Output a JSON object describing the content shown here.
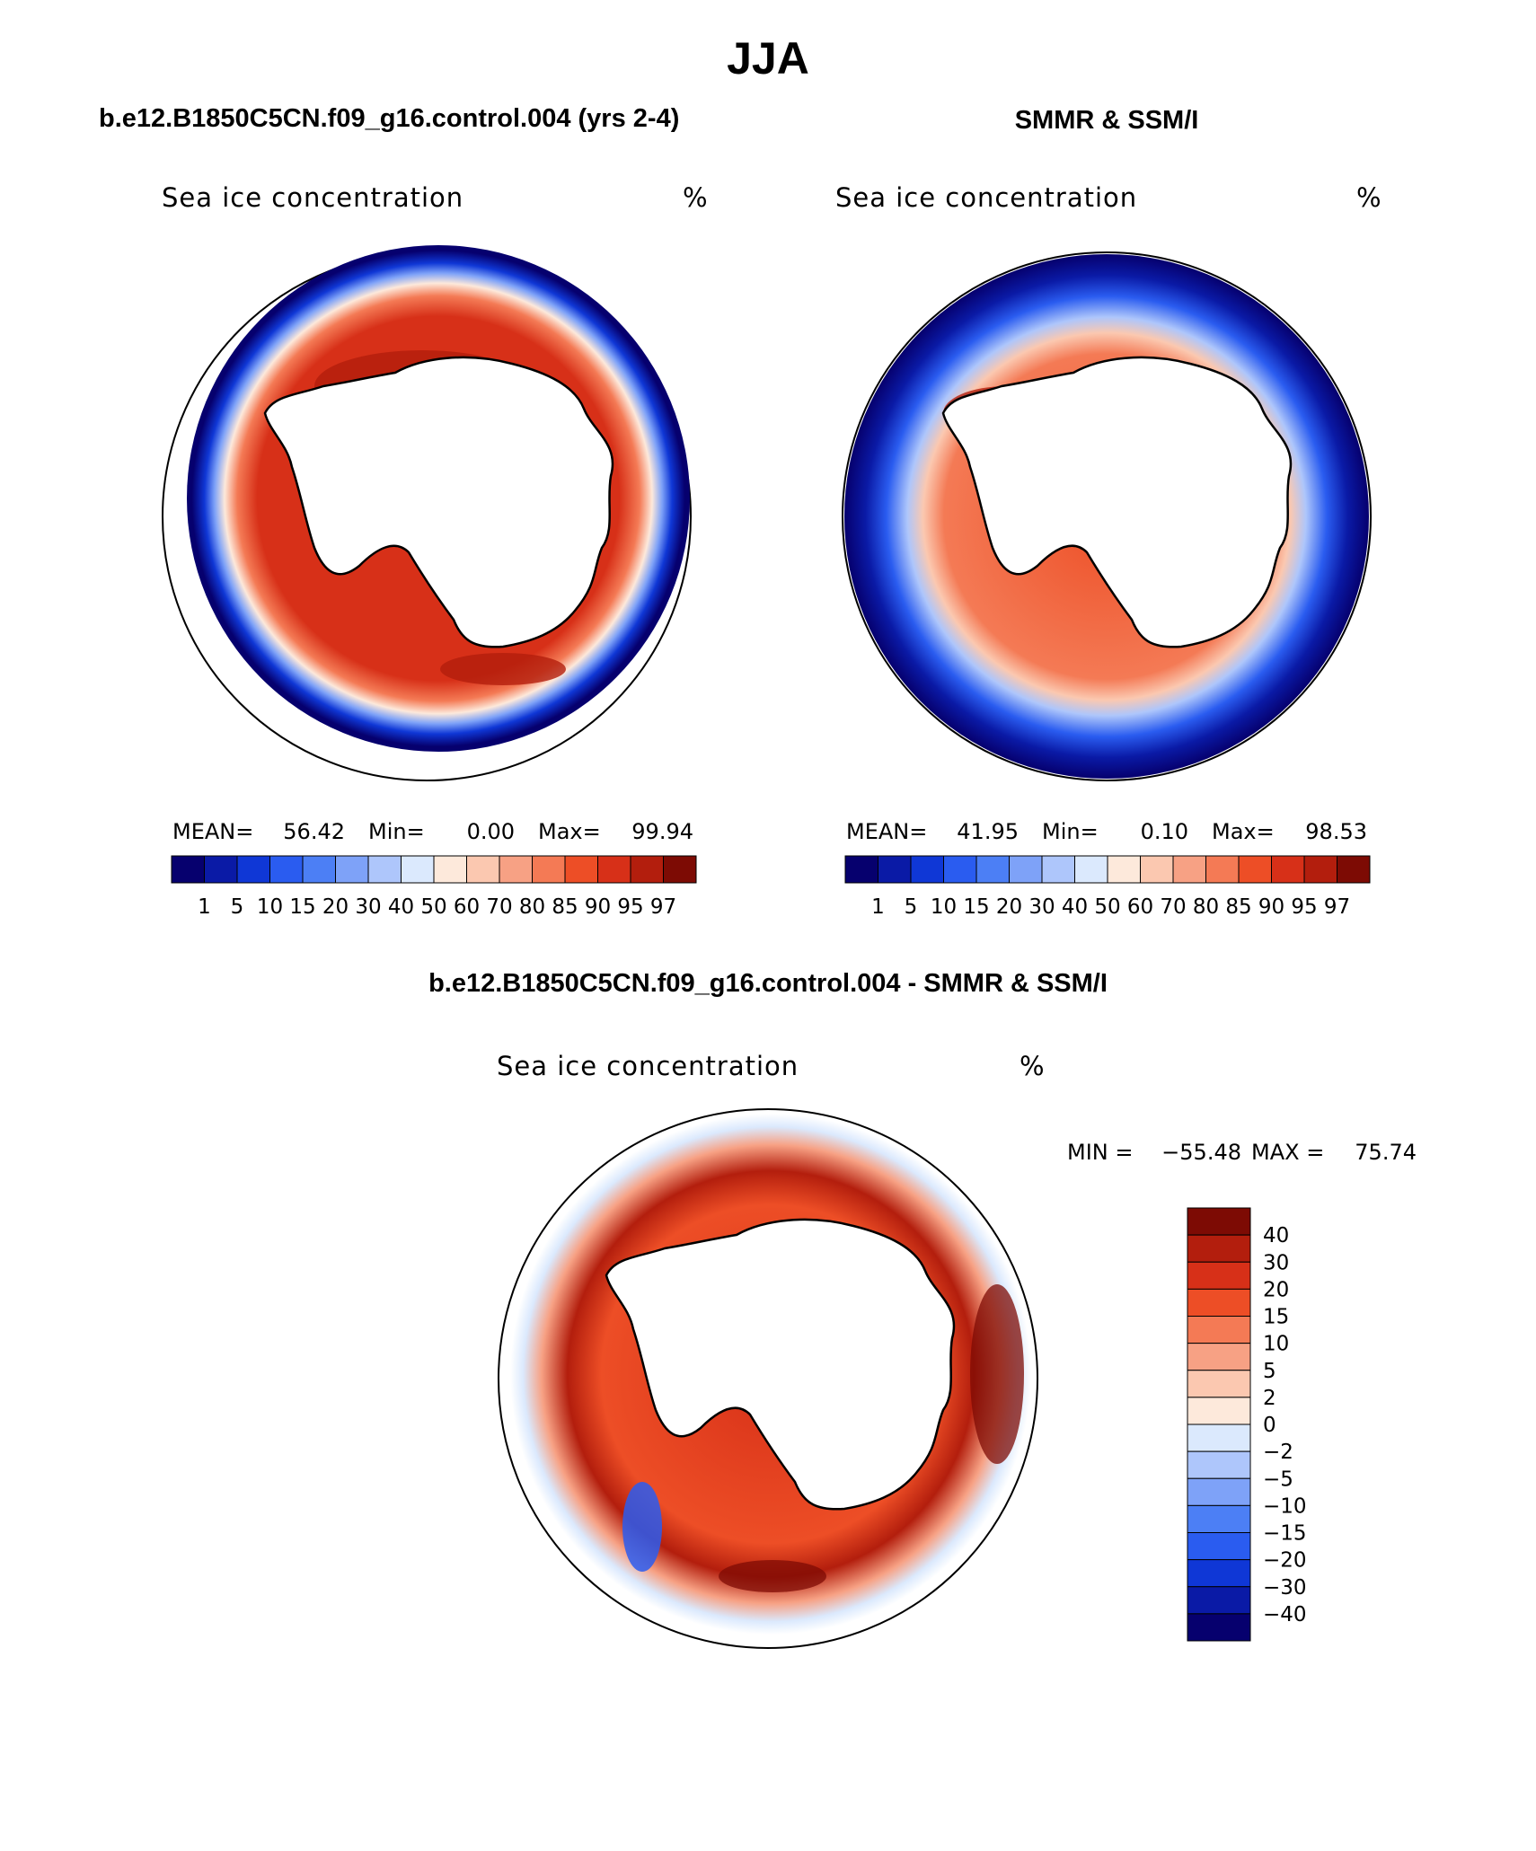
{
  "page_title": "JJA",
  "panels": [
    {
      "header": "b.e12.B1850C5CN.f09_g16.control.004 (yrs 2-4)",
      "field_title": "Sea ice concentration",
      "units": "%",
      "stats": {
        "mean_label": "MEAN=",
        "mean": "56.42",
        "min_label": "Min=",
        "min": "0.00",
        "max_label": "Max=",
        "max": "99.94"
      }
    },
    {
      "header": "SMMR & SSM/I",
      "field_title": "Sea ice concentration",
      "units": "%",
      "stats": {
        "mean_label": "MEAN=",
        "mean": "41.95",
        "min_label": "Min=",
        "min": "0.10",
        "max_label": "Max=",
        "max": "98.53"
      }
    }
  ],
  "concentration_scale": {
    "colors": [
      "#06006e",
      "#0a1aa6",
      "#0f37d6",
      "#2a5cf0",
      "#4c7ff5",
      "#7ea2f8",
      "#aec6fb",
      "#dbe9fd",
      "#fde9db",
      "#fbc8b0",
      "#f7a184",
      "#f47a55",
      "#ed4e26",
      "#d73018",
      "#b31e0d",
      "#7d0b04"
    ],
    "labels": [
      "1",
      "5",
      "10",
      "15",
      "20",
      "30",
      "40",
      "50",
      "60",
      "70",
      "80",
      "85",
      "90",
      "95",
      "97"
    ]
  },
  "difference_panel": {
    "header": "b.e12.B1850C5CN.f09_g16.control.004 - SMMR & SSM/I",
    "field_title": "Sea ice concentration",
    "units": "%",
    "minmax": {
      "min_label": "MIN =",
      "min": "−55.48",
      "max_label": "MAX =",
      "max": "75.74"
    },
    "scale": {
      "colors_top_to_bottom": [
        "#7d0b04",
        "#b31e0d",
        "#d73018",
        "#ed4e26",
        "#f47a55",
        "#f7a184",
        "#fbc8b0",
        "#fde9db",
        "#dbe9fd",
        "#aec6fb",
        "#7ea2f8",
        "#4c7ff5",
        "#2a5cf0",
        "#0f37d6",
        "#0a1aa6",
        "#06006e"
      ],
      "labels_top_to_bottom": [
        "40",
        "30",
        "20",
        "15",
        "10",
        "5",
        "2",
        "0",
        "−2",
        "−5",
        "−10",
        "−15",
        "−20",
        "−30",
        "−40"
      ]
    }
  }
}
